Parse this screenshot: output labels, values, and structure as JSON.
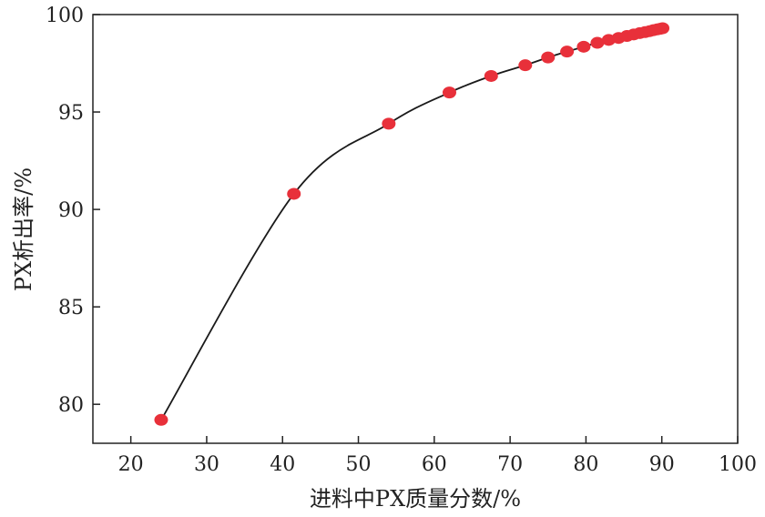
{
  "chart_data": {
    "type": "line",
    "xlabel": "进料中PX质量分数/%",
    "ylabel": "PX析出率/%",
    "xlim": [
      15,
      100
    ],
    "ylim": [
      78,
      100
    ],
    "x_ticks": [
      20,
      30,
      40,
      50,
      60,
      70,
      80,
      90,
      100
    ],
    "y_ticks": [
      80,
      85,
      90,
      95,
      100
    ],
    "grid": false,
    "line_color": "#1a1a1a",
    "marker_color": "#e8303a",
    "series": [
      {
        "points": [
          {
            "x": 24,
            "y": 79.2
          },
          {
            "x": 41.5,
            "y": 90.8
          },
          {
            "x": 54,
            "y": 94.4
          },
          {
            "x": 62,
            "y": 96.0
          },
          {
            "x": 67.5,
            "y": 96.85
          },
          {
            "x": 72,
            "y": 97.4
          },
          {
            "x": 75,
            "y": 97.8
          },
          {
            "x": 77.5,
            "y": 98.1
          },
          {
            "x": 79.7,
            "y": 98.35
          },
          {
            "x": 81.5,
            "y": 98.55
          },
          {
            "x": 83,
            "y": 98.7
          },
          {
            "x": 84.3,
            "y": 98.8
          },
          {
            "x": 85.4,
            "y": 98.9
          },
          {
            "x": 86.3,
            "y": 98.98
          },
          {
            "x": 87.1,
            "y": 99.05
          },
          {
            "x": 87.8,
            "y": 99.1
          },
          {
            "x": 88.4,
            "y": 99.15
          },
          {
            "x": 88.9,
            "y": 99.2
          },
          {
            "x": 89.4,
            "y": 99.24
          },
          {
            "x": 89.8,
            "y": 99.27
          },
          {
            "x": 90.1,
            "y": 99.3
          }
        ]
      }
    ]
  }
}
